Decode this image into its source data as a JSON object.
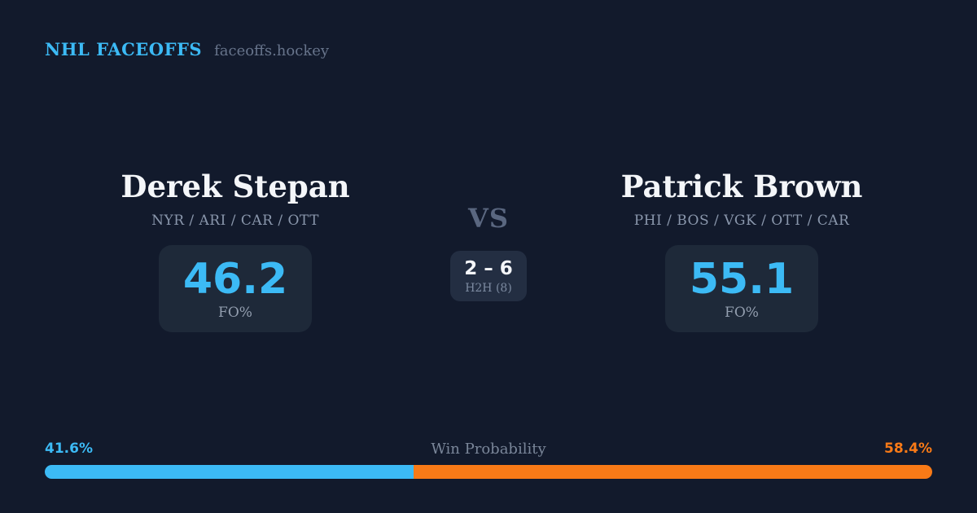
{
  "header": {
    "brand": "NHL FACEOFFS",
    "site": "faceoffs.hockey"
  },
  "matchup": {
    "left": {
      "name": "Derek Stepan",
      "teams": "NYR / ARI / CAR / OTT",
      "stat_value": "46.2",
      "stat_label": "FO%"
    },
    "vs_label": "VS",
    "h2h": {
      "score": "2 – 6",
      "label": "H2H (8)"
    },
    "right": {
      "name": "Patrick Brown",
      "teams": "PHI / BOS / VGK / OTT / CAR",
      "stat_value": "55.1",
      "stat_label": "FO%"
    }
  },
  "win_probability": {
    "label": "Win Probability",
    "left_label": "41.6%",
    "right_label": "58.4%",
    "left_value": 41.6,
    "right_value": 58.4
  },
  "colors": {
    "background": "#121A2C",
    "box": "#1E2939",
    "box-light": "#232E42",
    "accent-blue": "#3CBAF5",
    "accent-orange": "#F87A17",
    "text-primary": "#F4F6F9",
    "text-muted": "#8A97AC",
    "text-dim": "#67748B",
    "text-vs": "#5A6780",
    "text-label": "#939EAF",
    "text-h2h": "#7C8AA0",
    "text-wp": "#7A8699"
  },
  "chart_data": {
    "type": "bar",
    "title": "Win Probability",
    "categories": [
      "Derek Stepan",
      "Patrick Brown"
    ],
    "series": [
      {
        "name": "Faceoff %",
        "values": [
          46.2,
          55.1
        ]
      },
      {
        "name": "Win Probability %",
        "values": [
          41.6,
          58.4
        ]
      },
      {
        "name": "Head-to-head wins (of 8)",
        "values": [
          2,
          6
        ]
      }
    ],
    "orientation": "horizontal-stacked",
    "legend_position": "none",
    "xlim": [
      0,
      100
    ],
    "bar_colors": [
      "#3CBAF5",
      "#F87A17"
    ]
  }
}
